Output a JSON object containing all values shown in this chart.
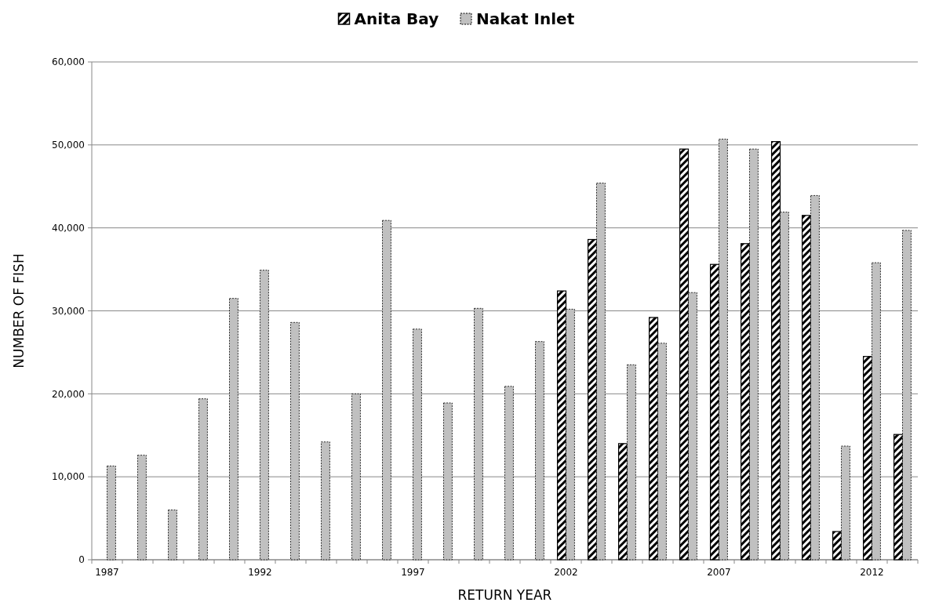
{
  "chart_data": {
    "type": "bar",
    "xlabel": "RETURN YEAR",
    "ylabel": "NUMBER OF FISH",
    "categories": [
      "1987",
      null,
      null,
      null,
      null,
      "1992",
      null,
      null,
      null,
      null,
      "1997",
      null,
      null,
      null,
      null,
      "2002",
      null,
      null,
      null,
      null,
      "2007",
      null,
      null,
      null,
      null,
      "2012",
      null
    ],
    "series": [
      {
        "name": "Anita Bay",
        "color": "#000000",
        "values": [
          null,
          null,
          null,
          null,
          null,
          null,
          null,
          null,
          null,
          null,
          null,
          null,
          null,
          null,
          null,
          32400,
          38600,
          14000,
          29200,
          49500,
          35600,
          38100,
          50400,
          41500,
          3400,
          24500,
          15100
        ]
      },
      {
        "name": "Nakat Inlet",
        "color": "#c0c0c0",
        "values": [
          11300,
          12600,
          6000,
          19400,
          31500,
          34900,
          28600,
          14200,
          20000,
          40900,
          27800,
          18900,
          30300,
          20900,
          26300,
          30200,
          45400,
          23500,
          26100,
          32200,
          50700,
          49500,
          41900,
          43900,
          13700,
          35800,
          39700
        ]
      }
    ],
    "ylim": [
      0,
      60000
    ],
    "yticks": [
      {
        "value": 0,
        "label": "0"
      },
      {
        "value": 10000,
        "label": "10,000"
      },
      {
        "value": 20000,
        "label": "20,000"
      },
      {
        "value": 30000,
        "label": "30,000"
      },
      {
        "value": 40000,
        "label": "40,000"
      },
      {
        "value": 50000,
        "label": "50,000"
      },
      {
        "value": 60000,
        "label": "60,000"
      }
    ],
    "grid": "y",
    "legend": "top"
  }
}
